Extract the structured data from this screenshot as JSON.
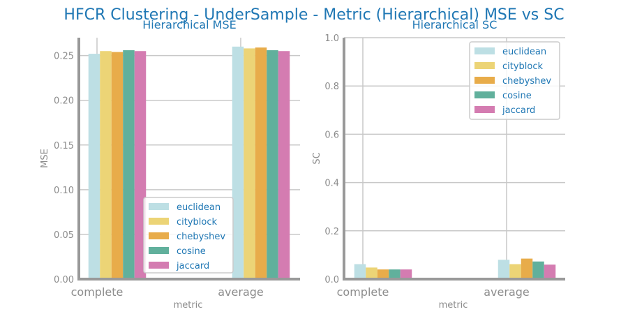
{
  "suptitle": "HFCR Clustering - UnderSample - Metric (Hierarchical) MSE vs SC",
  "colors": {
    "euclidean": "#bddfe4",
    "cityblock": "#ecd476",
    "chebyshev": "#e8ac4a",
    "cosine": "#61b09c",
    "jaccard": "#d47cb1",
    "text_blue": "#1f77b4",
    "axis_gray": "#999999"
  },
  "chart_data": [
    {
      "type": "bar",
      "title": "Hierarchical MSE",
      "xlabel": "metric",
      "ylabel": "MSE",
      "categories": [
        "complete",
        "average"
      ],
      "ylim": [
        0,
        0.27
      ],
      "yticks": [
        "0.00",
        "0.05",
        "0.10",
        "0.15",
        "0.20",
        "0.25"
      ],
      "ytick_values": [
        0,
        0.05,
        0.1,
        0.15,
        0.2,
        0.25
      ],
      "legend_position": "lower-right",
      "grid": true,
      "series": [
        {
          "name": "euclidean",
          "values": [
            0.252,
            0.26
          ]
        },
        {
          "name": "cityblock",
          "values": [
            0.255,
            0.258
          ]
        },
        {
          "name": "chebyshev",
          "values": [
            0.254,
            0.259
          ]
        },
        {
          "name": "cosine",
          "values": [
            0.256,
            0.256
          ]
        },
        {
          "name": "jaccard",
          "values": [
            0.255,
            0.255
          ]
        }
      ]
    },
    {
      "type": "bar",
      "title": "Hierarchical SC",
      "xlabel": "metric",
      "ylabel": "SC",
      "categories": [
        "complete",
        "average"
      ],
      "ylim": [
        0,
        1.0
      ],
      "yticks": [
        "0.0",
        "0.2",
        "0.4",
        "0.6",
        "0.8",
        "1.0"
      ],
      "ytick_values": [
        0,
        0.2,
        0.4,
        0.6,
        0.8,
        1.0
      ],
      "legend_position": "upper-right",
      "grid": true,
      "series": [
        {
          "name": "euclidean",
          "values": [
            0.062,
            0.08
          ]
        },
        {
          "name": "cityblock",
          "values": [
            0.048,
            0.062
          ]
        },
        {
          "name": "chebyshev",
          "values": [
            0.04,
            0.085
          ]
        },
        {
          "name": "cosine",
          "values": [
            0.04,
            0.073
          ]
        },
        {
          "name": "jaccard",
          "values": [
            0.04,
            0.06
          ]
        }
      ]
    }
  ]
}
